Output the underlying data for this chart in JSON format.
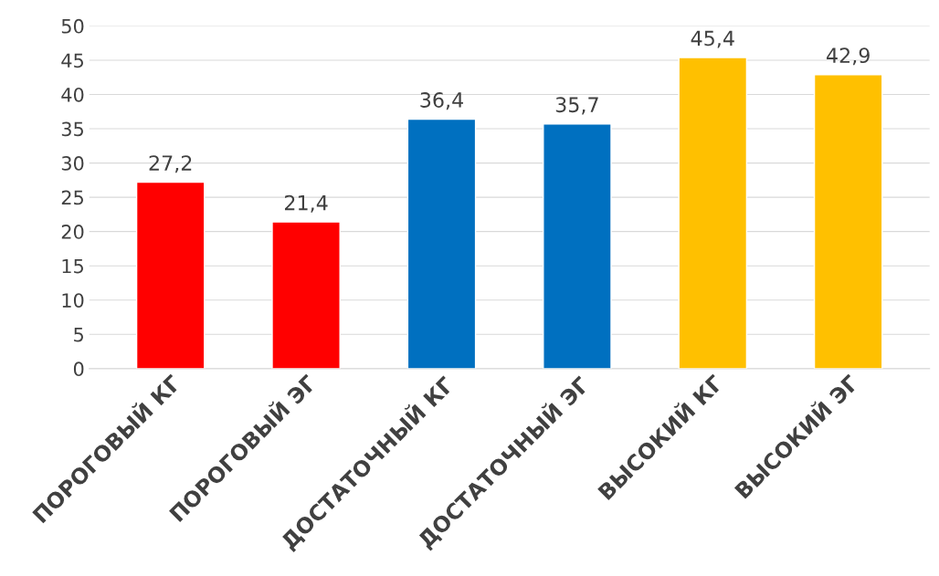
{
  "chart_data": {
    "type": "bar",
    "categories": [
      "ПОРОГОВЫЙ КГ",
      "ПОРОГОВЫЙ ЭГ",
      "ДОСТАТОЧНЫЙ КГ",
      "ДОСТАТОЧНЫЙ ЭГ",
      "ВЫСОКИЙ КГ",
      "ВЫСОКИЙ ЭГ"
    ],
    "values": [
      27.2,
      21.4,
      36.4,
      35.7,
      45.4,
      42.9
    ],
    "value_labels": [
      "27,2",
      "21,4",
      "36,4",
      "35,7",
      "45,4",
      "42,9"
    ],
    "colors": [
      "#ff0000",
      "#ff0000",
      "#0070c0",
      "#0070c0",
      "#ffc000",
      "#ffc000"
    ],
    "ylim": [
      0,
      50
    ],
    "yticks": [
      0,
      5,
      10,
      15,
      20,
      25,
      30,
      35,
      40,
      45,
      50
    ],
    "grid": "y",
    "legend": false
  }
}
